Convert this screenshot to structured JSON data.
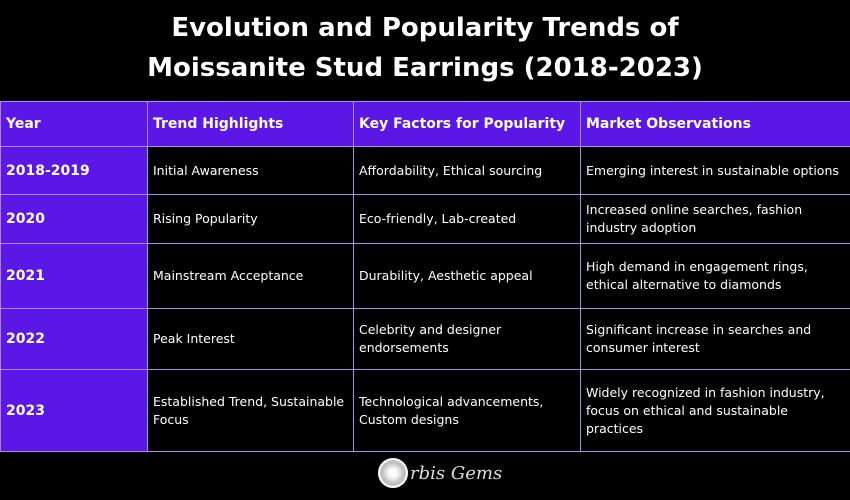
{
  "title_line1": "Evolution and Popularity Trends of",
  "title_line2": "Moissanite Stud Earrings (2018-2023)",
  "colors": {
    "header_bg": "#5b17e6",
    "body_bg": "#000000",
    "border": "#a98ae8"
  },
  "table": {
    "headers": [
      "Year",
      "Trend Highlights",
      "Key Factors for Popularity",
      "Market Observations"
    ],
    "rows": [
      [
        "2018-2019",
        "Initial Awareness",
        "Affordability, Ethical sourcing",
        "Emerging interest in sustainable options"
      ],
      [
        "2020",
        "Rising Popularity",
        "Eco-friendly, Lab-created",
        "Increased online searches, fashion industry adoption"
      ],
      [
        "2021",
        "Mainstream Acceptance",
        "Durability, Aesthetic appeal",
        "High demand in engagement rings, ethical alternative to diamonds"
      ],
      [
        "2022",
        "Peak Interest",
        "Celebrity and designer endorsements",
        "Significant increase in searches and consumer interest"
      ],
      [
        "2023",
        "Established Trend, Sustainable Focus",
        "Technological advancements, Custom designs",
        "Widely recognized in fashion industry, focus on ethical and sustainable practices"
      ]
    ]
  },
  "logo": {
    "text": "rbis Gems",
    "icon": "diamond-icon"
  }
}
